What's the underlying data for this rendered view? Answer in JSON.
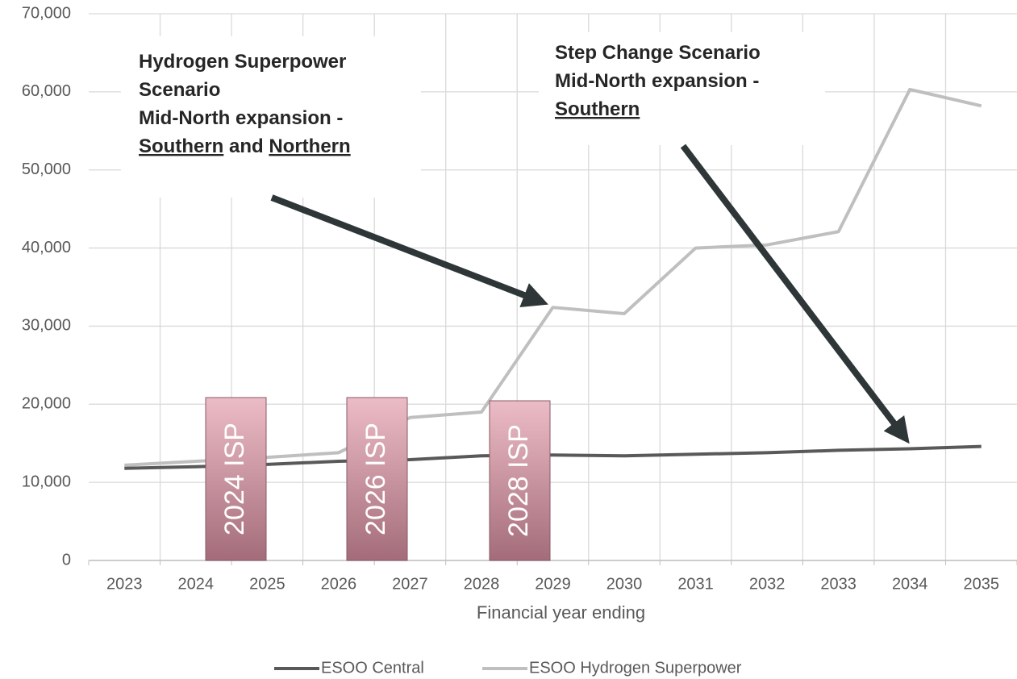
{
  "chart_data": {
    "type": "line",
    "x_label": "Financial year ending",
    "categories": [
      "2023",
      "2024",
      "2025",
      "2026",
      "2027",
      "2028",
      "2029",
      "2030",
      "2031",
      "2032",
      "2033",
      "2034",
      "2035"
    ],
    "series": [
      {
        "name": "ESOO Central",
        "color": "#595959",
        "values": [
          11800,
          12000,
          12300,
          12700,
          12900,
          13400,
          13500,
          13400,
          13600,
          13800,
          14100,
          14300,
          14600
        ]
      },
      {
        "name": "ESOO Hydrogen Superpower",
        "color": "#bfbfbf",
        "values": [
          12200,
          12700,
          13200,
          13800,
          18300,
          19000,
          32400,
          31600,
          40000,
          40400,
          42100,
          60300,
          58200
        ]
      }
    ],
    "ylim": [
      0,
      70000
    ],
    "yticks": [
      0,
      {
        "value": 10000,
        "label": "10,000"
      },
      {
        "value": 20000,
        "label": "20,000"
      },
      {
        "value": 30000,
        "label": "30,000"
      },
      {
        "value": 40000,
        "label": "40,000"
      },
      {
        "value": 50000,
        "label": "50,000"
      },
      {
        "value": 60000,
        "label": "60,000"
      },
      {
        "value": 70000,
        "label": "70,000"
      }
    ],
    "grid": true,
    "legend": "bottom",
    "isp_labels": [
      "2024 ISP",
      "2026 ISP",
      "2028 ISP"
    ],
    "annotations": [
      {
        "lines": [
          [
            {
              "text": "Hydrogen Superpower",
              "underline": false
            }
          ],
          [
            {
              "text": "Scenario",
              "underline": false
            }
          ],
          [
            {
              "text": "Mid-North expansion -",
              "underline": false
            }
          ],
          [
            {
              "text": "Southern",
              "underline": true
            },
            {
              "text": " and ",
              "underline": false
            },
            {
              "text": "Northern",
              "underline": true
            }
          ]
        ]
      },
      {
        "lines": [
          [
            {
              "text": "Step Change Scenario",
              "underline": false
            }
          ],
          [
            {
              "text": "Mid-North expansion -",
              "underline": false
            }
          ],
          [
            {
              "text": "Southern",
              "underline": true
            }
          ]
        ]
      }
    ]
  }
}
